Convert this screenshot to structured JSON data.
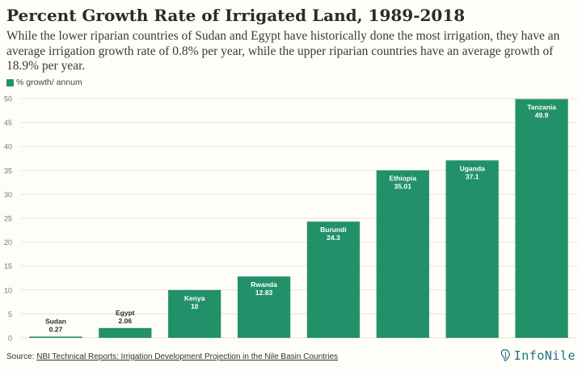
{
  "title": "Percent Growth Rate of Irrigated Land, 1989-2018",
  "subtitle": "While the lower riparian countries of Sudan and Egypt have historically done the most irrigation, they have an average irrigation growth rate of 0.8% per year, while the upper riparian countries have an average growth of 18.9% per year.",
  "legend_label": "% growth/ annum",
  "source_prefix": "Source: ",
  "source_link": "NBI Technical Reports: Irrigation Development Projection in the Nile Basin Countries",
  "logo_text": "InfoNile",
  "colors": {
    "bar": "#22916a",
    "grid": "#e6e3da",
    "background": "#fffdf7",
    "logo": "#1f6e8f"
  },
  "chart_data": {
    "type": "bar",
    "categories": [
      "Sudan",
      "Egypt",
      "Kenya",
      "Rwanda",
      "Burundi",
      "Ethiopia",
      "Uganda",
      "Tanzania"
    ],
    "series": [
      {
        "name": "% growth/ annum",
        "values": [
          0.27,
          2.06,
          10,
          12.83,
          24.3,
          35.01,
          37.1,
          49.9
        ]
      }
    ],
    "value_labels": [
      "0.27",
      "2.06",
      "10",
      "12.83",
      "24.3",
      "35.01",
      "37.1",
      "49.9"
    ],
    "ylim": [
      0,
      50
    ],
    "yticks": [
      0,
      5,
      10,
      15,
      20,
      25,
      30,
      35,
      40,
      45,
      50
    ],
    "grid": true,
    "legend_position": "top-left",
    "xlabel": "",
    "ylabel": ""
  }
}
